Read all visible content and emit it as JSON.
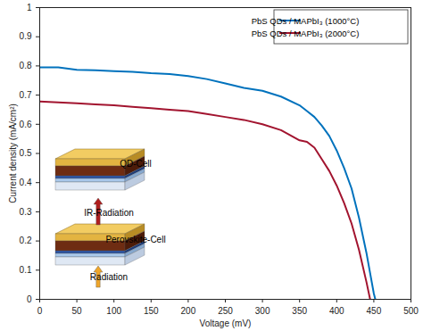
{
  "chart_data": {
    "type": "line",
    "x_label": "Voltage (mV)",
    "y_label": "Current density (mA/cm²)",
    "x": [
      0,
      25,
      50,
      75,
      100,
      125,
      150,
      175,
      200,
      225,
      250,
      275,
      300,
      325,
      350,
      360,
      370,
      380,
      390,
      400,
      410,
      420,
      430,
      440,
      445,
      450,
      452
    ],
    "series": [
      {
        "name": "PbS QDs / MAPbI₃ (1000°C)",
        "color": "#0072bd",
        "values": [
          0.795,
          0.795,
          0.787,
          0.785,
          0.782,
          0.78,
          0.775,
          0.772,
          0.765,
          0.755,
          0.74,
          0.725,
          0.715,
          0.695,
          0.665,
          0.645,
          0.625,
          0.595,
          0.56,
          0.51,
          0.45,
          0.38,
          0.28,
          0.16,
          0.09,
          0.02,
          0
        ]
      },
      {
        "name": "PbS QDs / MAPbI₃ (2000°C)",
        "color": "#a2142f",
        "values": [
          0.678,
          0.675,
          0.672,
          0.668,
          0.665,
          0.66,
          0.655,
          0.65,
          0.645,
          0.635,
          0.625,
          0.615,
          0.6,
          0.58,
          0.545,
          0.54,
          0.52,
          0.48,
          0.44,
          0.39,
          0.33,
          0.26,
          0.17,
          0.06,
          0,
          null,
          null
        ]
      }
    ],
    "xlim": [
      0,
      500
    ],
    "xticks": [
      0,
      50,
      100,
      150,
      200,
      250,
      300,
      350,
      400,
      450,
      500
    ],
    "ylim": [
      0,
      1
    ],
    "yticks": [
      0,
      0.1,
      0.2,
      0.3,
      0.4,
      0.5,
      0.6,
      0.7,
      0.8,
      0.9,
      1
    ],
    "grid": false,
    "legend": "northeast",
    "annotations": [
      "QD-Cell",
      "IR-Radiation",
      "Perovskite-Cell",
      "Radiation"
    ]
  }
}
